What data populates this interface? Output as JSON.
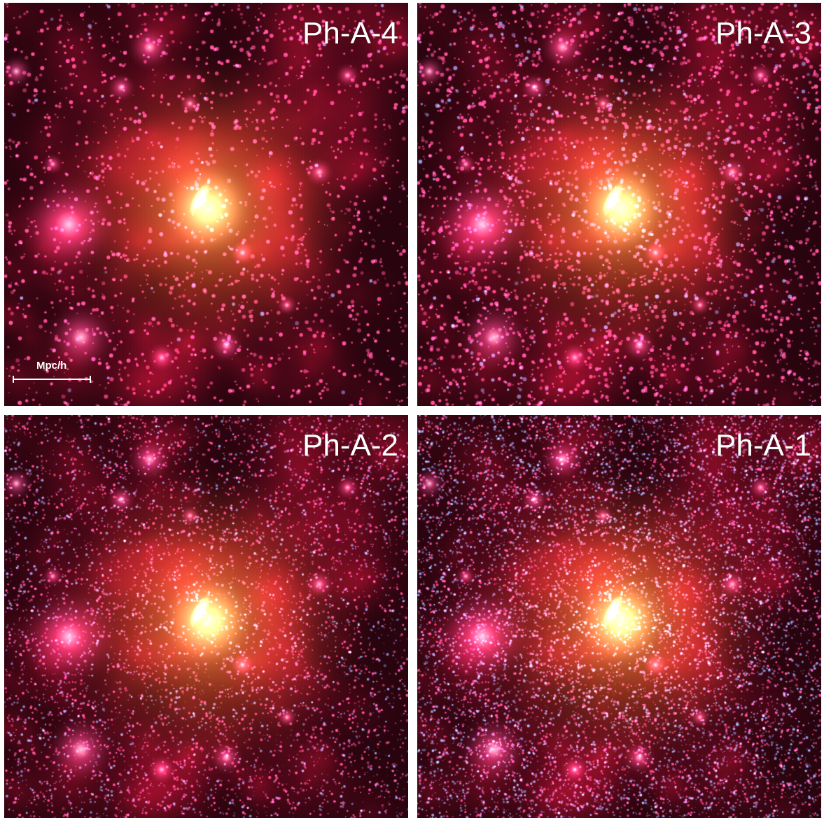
{
  "panels": [
    {
      "label": "Ph-A-4",
      "resolution_level": 4,
      "scale_bar": {
        "label": "Mpc/h"
      }
    },
    {
      "label": "Ph-A-3",
      "resolution_level": 3
    },
    {
      "label": "Ph-A-2",
      "resolution_level": 2
    },
    {
      "label": "Ph-A-1",
      "resolution_level": 1
    }
  ],
  "colors": {
    "background": "#ffffff",
    "core": "#fff6b0",
    "halo_glow": "#d9b040",
    "substructure": "#ff5aa8",
    "field_red": "#a0102a",
    "fine_particles": "#7fb0ff"
  }
}
